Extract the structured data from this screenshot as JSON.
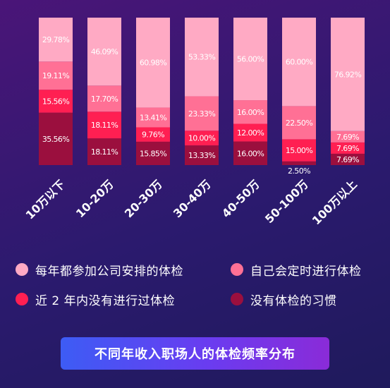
{
  "chart_data": {
    "type": "stacked-bar",
    "title": "不同年收入职场人的体检频率分布",
    "categories": [
      "10万以下",
      "10-20万",
      "20-30万",
      "30-40万",
      "40-50万",
      "50-100万",
      "100万以上"
    ],
    "series": [
      {
        "name": "没有体检的习惯",
        "color": "#9b0f3e",
        "values": [
          35.56,
          18.11,
          15.85,
          13.33,
          16.0,
          2.5,
          7.69
        ],
        "labels": [
          "35.56%",
          "18.11%",
          "15.85%",
          "13.33%",
          "16.00%",
          "2.50%",
          "7.69%"
        ]
      },
      {
        "name": "近 2 年内没有进行过体检",
        "color": "#ff1f52",
        "values": [
          15.56,
          18.11,
          9.76,
          10.0,
          12.0,
          15.0,
          7.69
        ],
        "labels": [
          "15.56%",
          "18.11%",
          "9.76%",
          "10.00%",
          "12.00%",
          "15.00%",
          "7.69%"
        ]
      },
      {
        "name": "自己会定时进行体检",
        "color": "#ff7095",
        "values": [
          19.11,
          17.7,
          13.41,
          23.33,
          16.0,
          22.5,
          7.69
        ],
        "labels": [
          "19.11%",
          "17.70%",
          "13.41%",
          "23.33%",
          "16.00%",
          "22.50%",
          "7.69%"
        ]
      },
      {
        "name": "每年都参加公司安排的体检",
        "color": "#ffaac4",
        "values": [
          29.78,
          46.09,
          60.98,
          53.33,
          56.0,
          60.0,
          76.92
        ],
        "labels": [
          "29.78%",
          "46.09%",
          "60.98%",
          "53.33%",
          "56.00%",
          "60.00%",
          "76.92%"
        ]
      }
    ],
    "legend_order": [
      3,
      2,
      1,
      0
    ],
    "legend_placement": "bottom"
  }
}
